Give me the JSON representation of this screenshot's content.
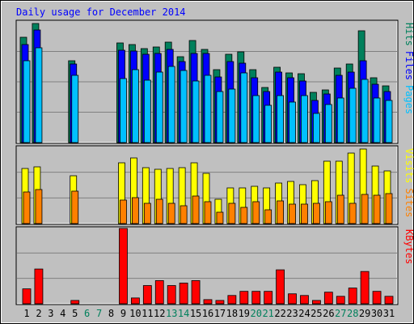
{
  "chart_data": [
    {
      "type": "bar",
      "title": "Daily usage for December 2014",
      "categories": [
        "1",
        "2",
        "3",
        "4",
        "5",
        "6",
        "7",
        "8",
        "9",
        "10",
        "11",
        "12",
        "13",
        "14",
        "15",
        "16",
        "17",
        "18",
        "19",
        "20",
        "21",
        "22",
        "23",
        "24",
        "25",
        "26",
        "27",
        "28",
        "29",
        "30",
        "31"
      ],
      "category_colors": [
        "#000000",
        "#000000",
        "#000000",
        "#000000",
        "#000000",
        "#00805c",
        "#00805c",
        "#000000",
        "#000000",
        "#000000",
        "#000000",
        "#000000",
        "#00805c",
        "#00805c",
        "#000000",
        "#000000",
        "#000000",
        "#000000",
        "#000000",
        "#00805c",
        "#00805c",
        "#000000",
        "#000000",
        "#000000",
        "#000000",
        "#000000",
        "#00805c",
        "#00805c",
        "#000000",
        "#000000",
        "#000000"
      ],
      "ylim": [
        0,
        150
      ],
      "series": [
        {
          "name": "Hits",
          "color": "#00805c",
          "values": [
            130,
            147,
            0,
            0,
            101,
            0,
            0,
            0,
            123,
            121,
            116,
            118,
            124,
            106,
            126,
            115,
            90,
            109,
            112,
            90,
            68,
            93,
            86,
            85,
            62,
            65,
            92,
            97,
            138,
            80,
            70
          ]
        },
        {
          "name": "Files",
          "color": "#0000ff",
          "values": [
            121,
            139,
            0,
            0,
            97,
            0,
            0,
            0,
            114,
            113,
            109,
            110,
            115,
            100,
            110,
            110,
            81,
            100,
            98,
            80,
            63,
            87,
            80,
            76,
            52,
            60,
            83,
            87,
            101,
            72,
            63
          ]
        },
        {
          "name": "Pages",
          "color": "#00c0ff",
          "values": [
            101,
            117,
            0,
            0,
            83,
            0,
            0,
            0,
            79,
            90,
            77,
            87,
            94,
            89,
            76,
            83,
            63,
            66,
            86,
            58,
            46,
            58,
            50,
            58,
            36,
            47,
            55,
            67,
            78,
            55,
            52
          ]
        }
      ]
    },
    {
      "type": "bar",
      "ylim": [
        0,
        95
      ],
      "series": [
        {
          "name": "Visits",
          "color": "#ffff00",
          "values": [
            68,
            70,
            0,
            0,
            59,
            0,
            0,
            0,
            75,
            81,
            69,
            67,
            68,
            69,
            75,
            62,
            30,
            44,
            44,
            46,
            44,
            50,
            52,
            48,
            53,
            77,
            77,
            87,
            92,
            71,
            65
          ]
        },
        {
          "name": "Sites",
          "color": "#ff8000",
          "values": [
            39,
            42,
            0,
            0,
            40,
            0,
            0,
            0,
            29,
            32,
            25,
            30,
            25,
            22,
            34,
            27,
            14,
            25,
            20,
            27,
            17,
            28,
            24,
            24,
            25,
            27,
            35,
            25,
            36,
            35,
            37
          ]
        }
      ]
    },
    {
      "type": "bar",
      "ylim": [
        0,
        92
      ],
      "series": [
        {
          "name": "KBytes",
          "color": "#ff0000",
          "values": [
            18,
            42,
            0,
            0,
            4,
            0,
            0,
            0,
            91,
            7,
            22,
            28,
            22,
            25,
            28,
            5,
            4,
            10,
            15,
            15,
            15,
            41,
            12,
            10,
            4,
            14,
            9,
            19,
            39,
            15,
            9
          ]
        }
      ]
    }
  ]
}
